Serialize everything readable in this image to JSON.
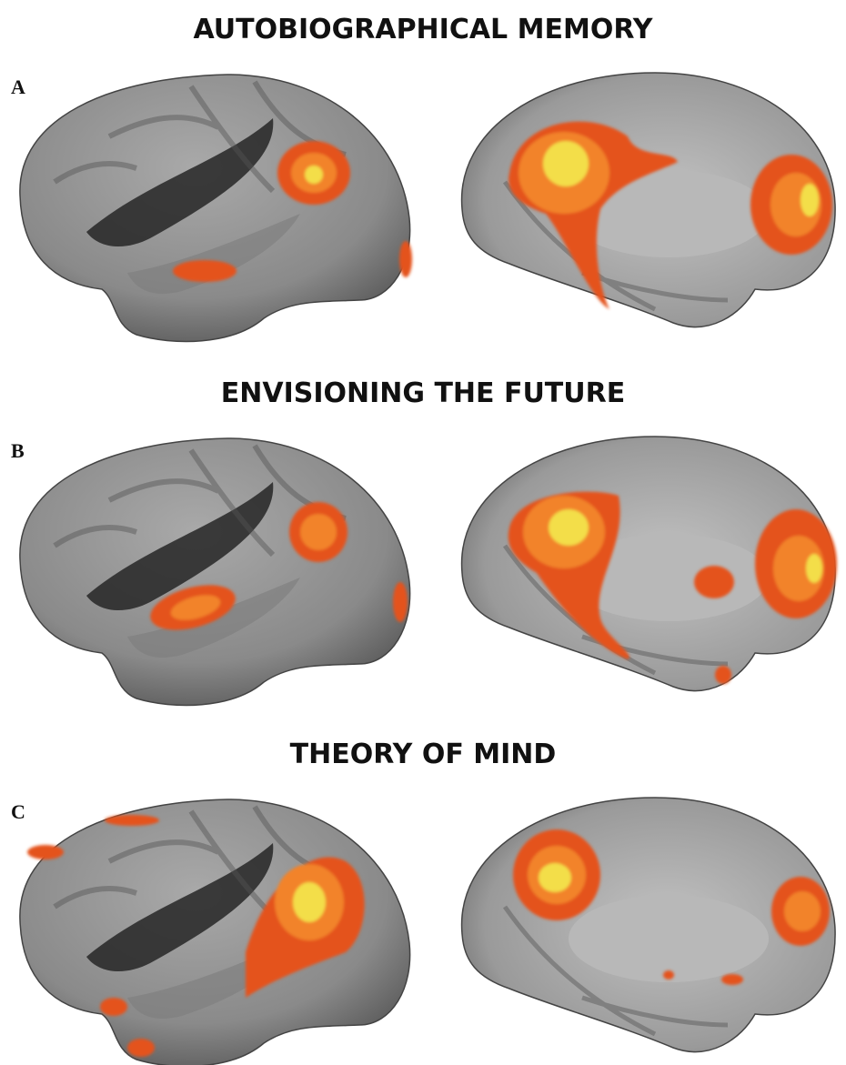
{
  "panels": [
    {
      "label": "A",
      "title": "AUTOBIOGRAPHICAL MEMORY"
    },
    {
      "label": "B",
      "title": "ENVISIONING THE FUTURE"
    },
    {
      "label": "C",
      "title": "THEORY OF MIND"
    }
  ]
}
